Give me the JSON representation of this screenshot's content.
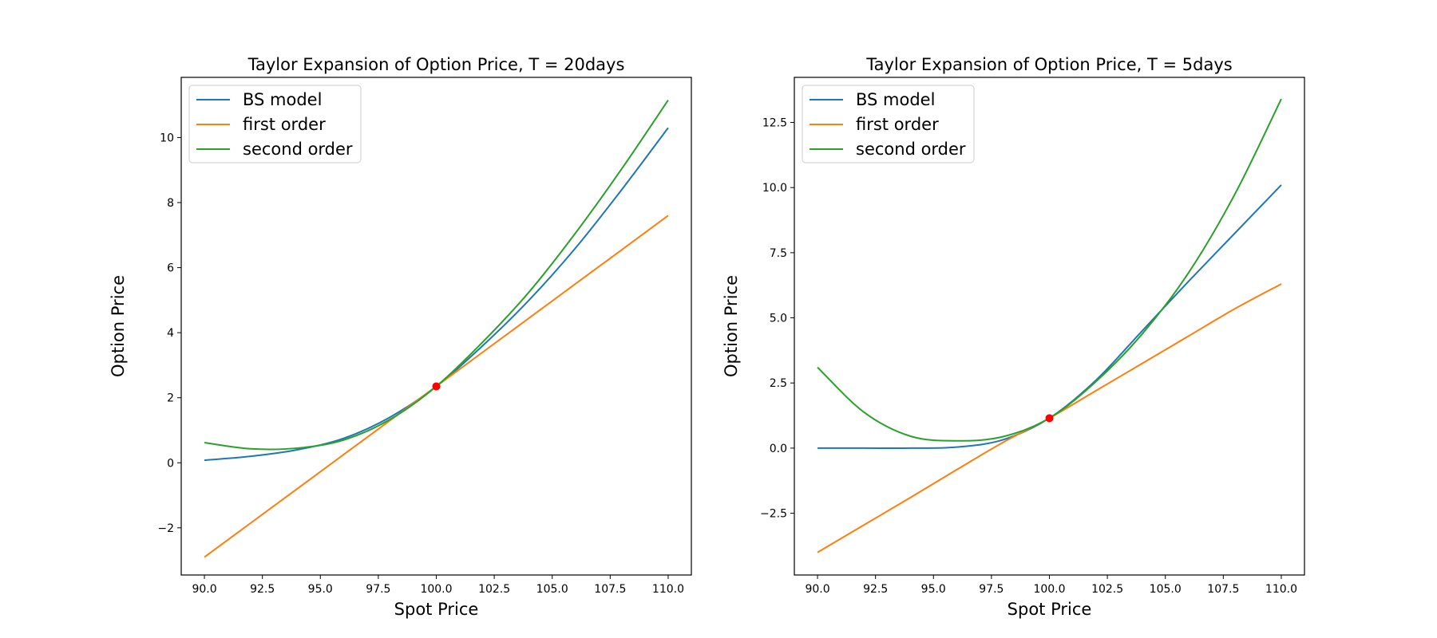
{
  "chart_data": [
    {
      "type": "line",
      "title": "Taylor Expansion of Option Price, T = 20days",
      "xlabel": "Spot Price",
      "ylabel": "Option Price",
      "xlim": [
        89.0,
        111.0
      ],
      "ylim": [
        -3.45,
        11.85
      ],
      "xticks": [
        90.0,
        92.5,
        95.0,
        97.5,
        100.0,
        102.5,
        105.0,
        107.5,
        110.0
      ],
      "xtick_labels": [
        "90.0",
        "92.5",
        "95.0",
        "97.5",
        "100.0",
        "102.5",
        "105.0",
        "107.5",
        "110.0"
      ],
      "yticks": [
        -2,
        0,
        2,
        4,
        6,
        8,
        10
      ],
      "ytick_labels": [
        "−2",
        "0",
        "2",
        "4",
        "6",
        "8",
        "10"
      ],
      "legend_position": "upper-left",
      "x": [
        90,
        92,
        94,
        96,
        98,
        100,
        102,
        104,
        106,
        108,
        110
      ],
      "series": [
        {
          "name": "BS model",
          "color": "#1f77b4",
          "values": [
            0.08,
            0.2,
            0.4,
            0.75,
            1.4,
            2.35,
            3.6,
            5.0,
            6.6,
            8.4,
            10.3
          ]
        },
        {
          "name": "first order",
          "color": "#ff7f0e",
          "values": [
            -2.9,
            -1.85,
            -0.8,
            0.25,
            1.3,
            2.35,
            3.4,
            4.45,
            5.5,
            6.55,
            7.6
          ]
        },
        {
          "name": "second order",
          "color": "#2ca02c",
          "values": [
            0.62,
            0.43,
            0.45,
            0.7,
            1.33,
            2.35,
            3.71,
            5.25,
            7.06,
            9.04,
            11.15
          ]
        }
      ],
      "marker": {
        "x": 100.0,
        "y": 2.35,
        "color": "#ff0000"
      }
    },
    {
      "type": "line",
      "title": "Taylor Expansion of Option Price, T = 5days",
      "xlabel": "Spot Price",
      "ylabel": "Option Price",
      "xlim": [
        89.0,
        111.0
      ],
      "ylim": [
        -4.87,
        14.23
      ],
      "xticks": [
        90.0,
        92.5,
        95.0,
        97.5,
        100.0,
        102.5,
        105.0,
        107.5,
        110.0
      ],
      "xtick_labels": [
        "90.0",
        "92.5",
        "95.0",
        "97.5",
        "100.0",
        "102.5",
        "105.0",
        "107.5",
        "110.0"
      ],
      "yticks": [
        -2.5,
        0.0,
        2.5,
        5.0,
        7.5,
        10.0,
        12.5
      ],
      "ytick_labels": [
        "−2.5",
        "0.0",
        "2.5",
        "5.0",
        "7.5",
        "10.0",
        "12.5"
      ],
      "legend_position": "upper-left",
      "x": [
        90,
        92,
        94,
        96,
        98,
        100,
        102,
        104,
        106,
        108,
        110
      ],
      "series": [
        {
          "name": "BS model",
          "color": "#1f77b4",
          "values": [
            0.0,
            0.0,
            0.0,
            0.04,
            0.32,
            1.15,
            2.6,
            4.5,
            6.4,
            8.25,
            10.1
          ]
        },
        {
          "name": "first order",
          "color": "#ff7f0e",
          "values": [
            -4.0,
            -2.95,
            -1.9,
            -0.83,
            0.22,
            1.15,
            2.2,
            3.25,
            4.3,
            5.35,
            6.3
          ]
        },
        {
          "name": "second order",
          "color": "#2ca02c",
          "values": [
            3.1,
            1.38,
            0.46,
            0.28,
            0.44,
            1.15,
            2.55,
            4.38,
            6.73,
            9.75,
            13.4
          ]
        }
      ],
      "marker": {
        "x": 100.0,
        "y": 1.15,
        "color": "#ff0000"
      }
    }
  ]
}
